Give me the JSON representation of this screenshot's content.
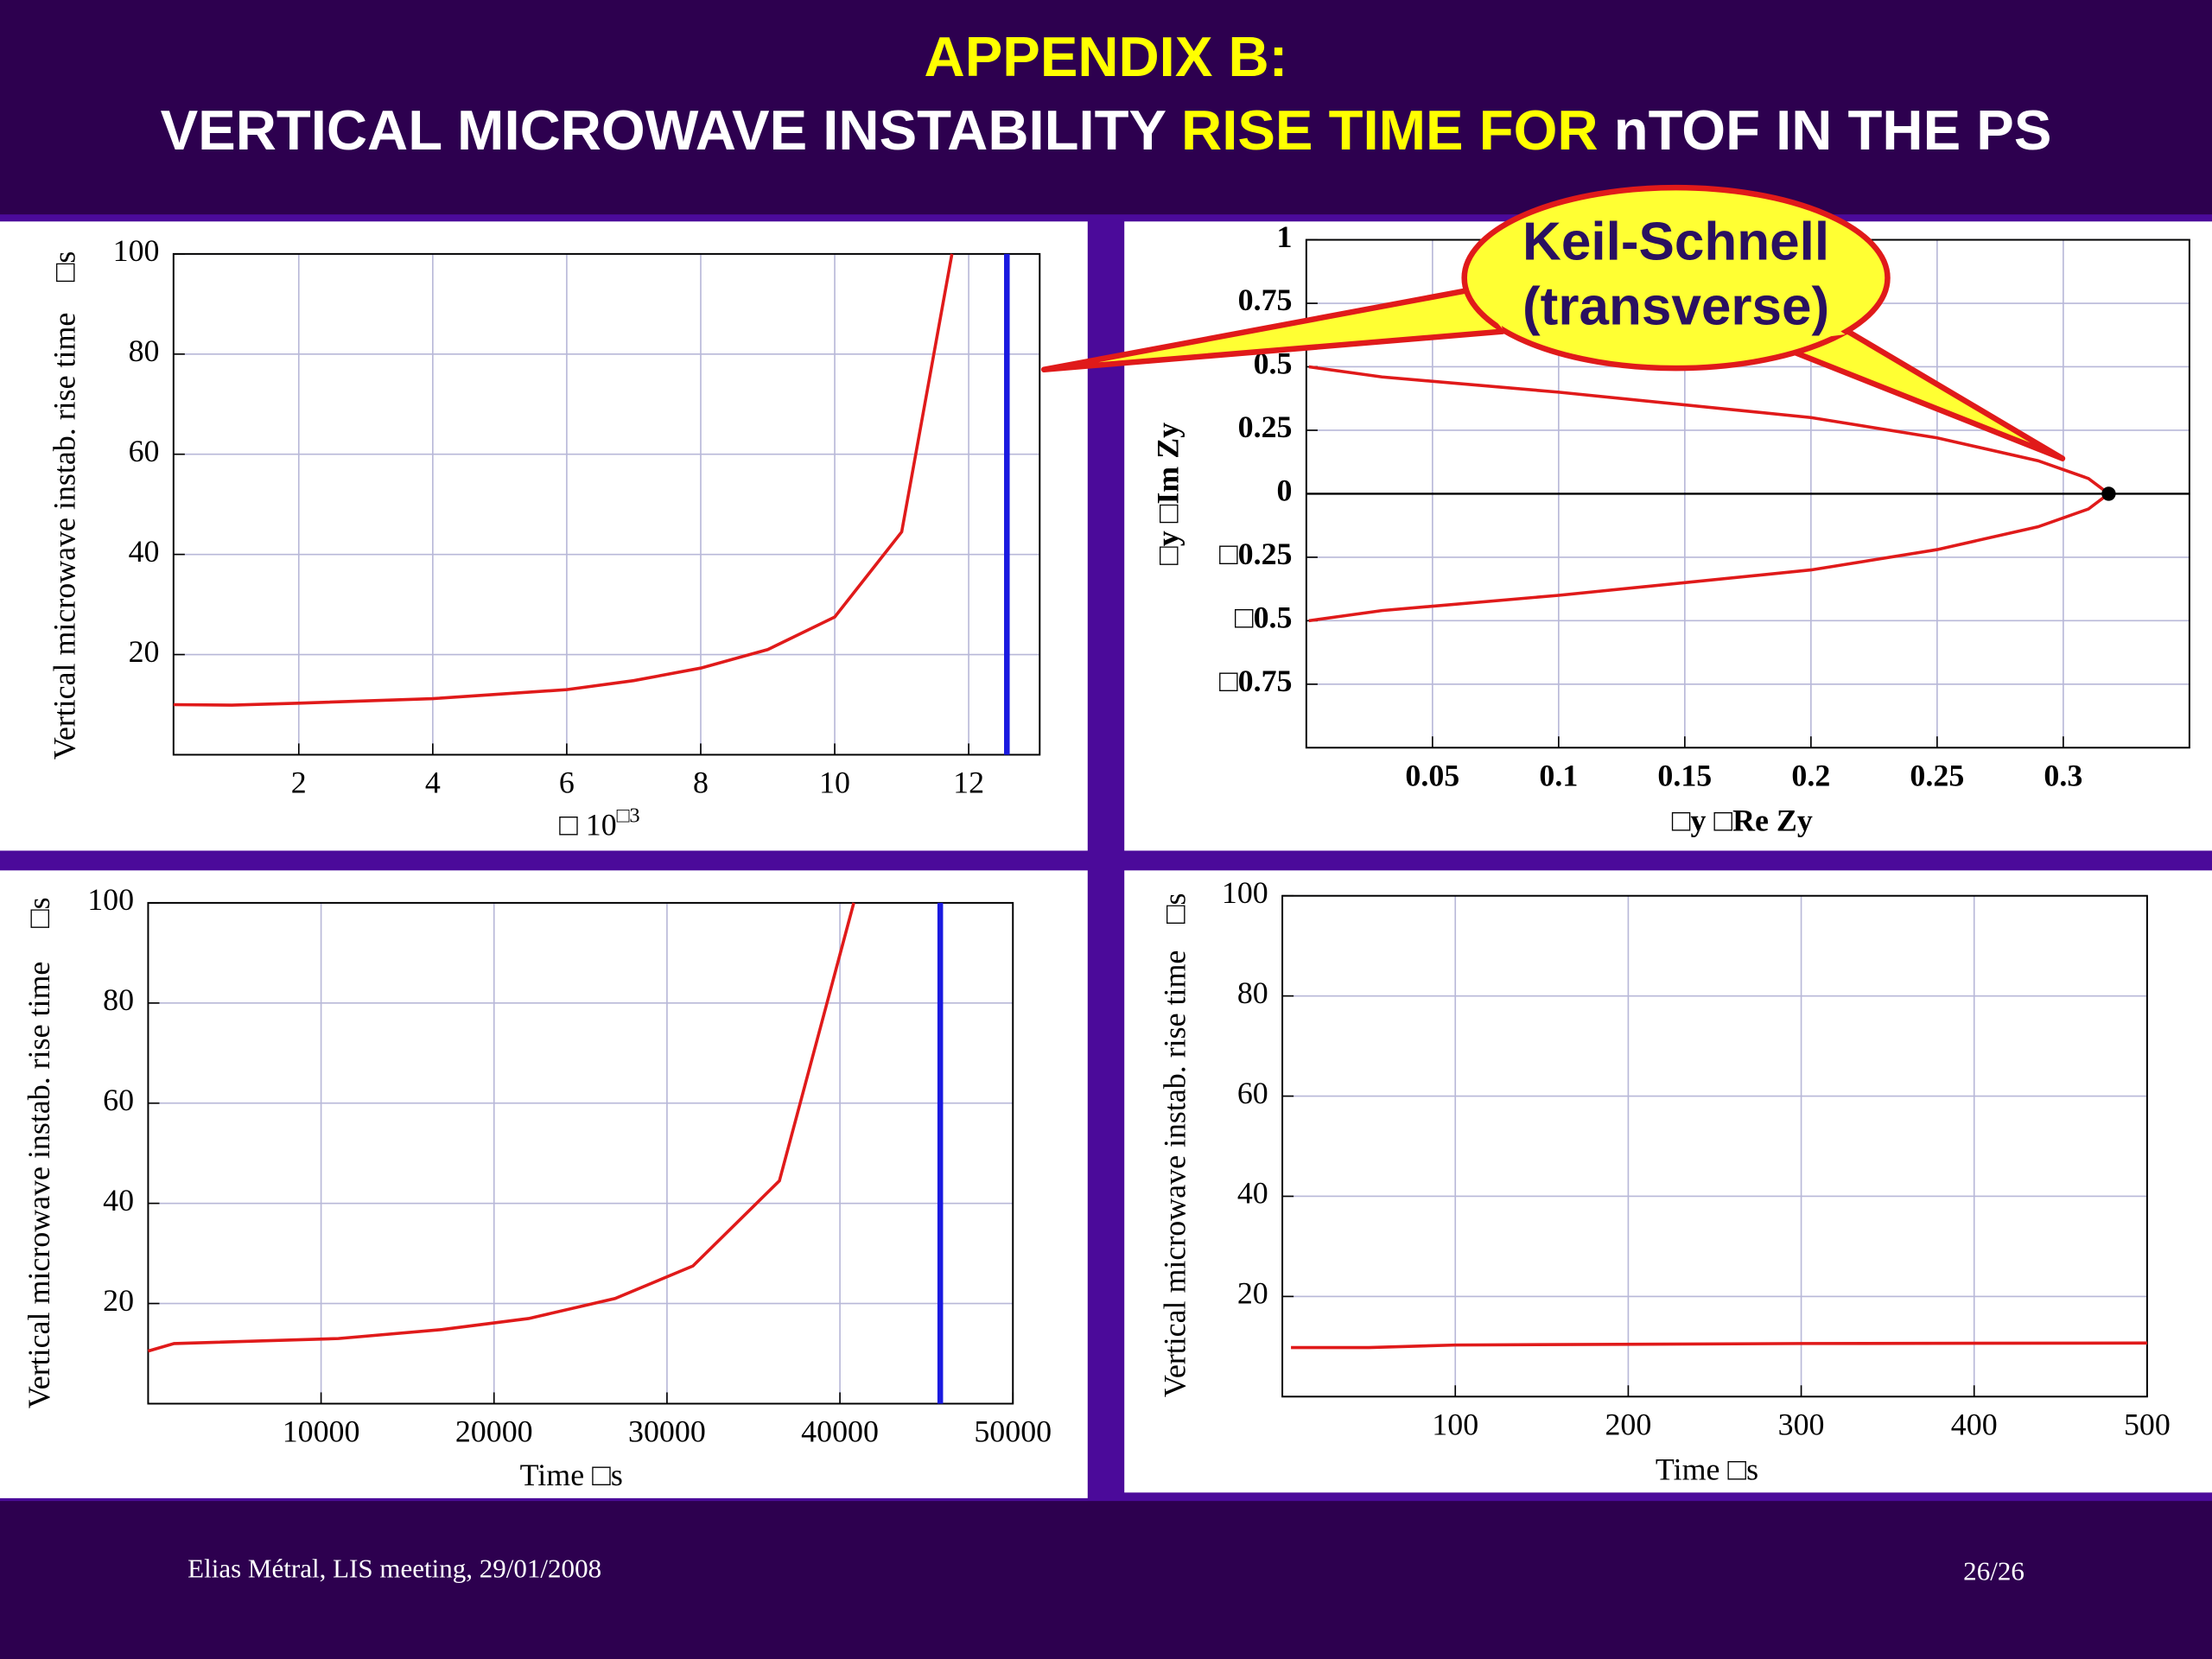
{
  "slide": {
    "title_line1": "APPENDIX B:",
    "title_line2_part1": "VERTICAL MICROWAVE INSTABILITY ",
    "title_line2_part2": "RISE TIME FOR",
    "title_line2_part3": " nTOF IN THE PS",
    "footer_left": "Elias Métral, LIS meeting, 29/01/2008",
    "footer_right": "26/26"
  },
  "chart_data": [
    {
      "type": "line",
      "y_label": "Vertical microwave instab. rise time",
      "y_unit": "□s",
      "x_label": "□  10",
      "x_label_sup": "□3",
      "x": [
        0.13,
        1,
        2,
        4,
        6,
        7,
        8,
        9,
        10,
        11,
        11.75
      ],
      "values": [
        10,
        9.9,
        10.3,
        11.2,
        13,
        14.8,
        17.3,
        21,
        27.5,
        44.5,
        100
      ],
      "color": "#e01a1a",
      "vline": {
        "value": 12.57,
        "color": "#1a1ae0"
      },
      "xlim": [
        0.13,
        13.06
      ],
      "xticks": [
        2,
        4,
        6,
        8,
        10,
        12
      ],
      "ylim": [
        0,
        100
      ],
      "yticks": [
        20,
        40,
        60,
        80,
        100
      ],
      "grid": true
    },
    {
      "type": "line",
      "y_label": "□y □Im  Zy",
      "x_label": "□y □Re  Zy",
      "annotations": [
        "Keil-Schnell",
        "(transverse)"
      ],
      "x": [
        0.001,
        0.03,
        0.1,
        0.2,
        0.25,
        0.29,
        0.31,
        0.318,
        0.31,
        0.29,
        0.25,
        0.2,
        0.1,
        0.03,
        0.001
      ],
      "values": [
        0.5,
        0.46,
        0.4,
        0.3,
        0.22,
        0.13,
        0.06,
        0,
        -0.06,
        -0.13,
        -0.22,
        -0.3,
        -0.4,
        -0.46,
        -0.5
      ],
      "color": "#e01a1a",
      "marker": {
        "x": 0.318,
        "y": 0,
        "color": "#000000"
      },
      "zero_line": true,
      "xlim": [
        0,
        0.35
      ],
      "xticks": [
        0.05,
        0.1,
        0.15,
        0.2,
        0.25,
        0.3
      ],
      "ylim": [
        -1,
        1
      ],
      "yticks": [
        1,
        0.75,
        0.5,
        0.25,
        0,
        {
          "value": -0.25,
          "label": "□0.25"
        },
        {
          "value": -0.5,
          "label": "□0.5"
        },
        {
          "value": -0.75,
          "label": "□0.75"
        }
      ],
      "grid": true
    },
    {
      "type": "line",
      "y_label": "Vertical microwave instab. rise time",
      "y_unit": "□s",
      "x_label": "Time    □s",
      "x": [
        0,
        1500,
        11000,
        17000,
        22000,
        27000,
        31500,
        36500,
        40800
      ],
      "values": [
        10.5,
        12,
        13,
        14.8,
        17,
        21,
        27.5,
        44.5,
        100
      ],
      "color": "#e01a1a",
      "vline": {
        "value": 45800,
        "color": "#1a1ae0"
      },
      "xlim": [
        0,
        50000
      ],
      "xticks": [
        10000,
        20000,
        30000,
        40000,
        50000
      ],
      "ylim": [
        0,
        100
      ],
      "yticks": [
        20,
        40,
        60,
        80,
        100
      ],
      "grid": true
    },
    {
      "type": "line",
      "y_label": "Vertical microwave instab. rise time",
      "y_unit": "□s",
      "x_label": "Time    □s",
      "x": [
        5,
        50,
        100,
        300,
        500
      ],
      "values": [
        9.8,
        9.8,
        10.3,
        10.6,
        10.7
      ],
      "color": "#e01a1a",
      "xlim": [
        0,
        500
      ],
      "xticks": [
        100,
        200,
        300,
        400,
        500
      ],
      "ylim": [
        0,
        100
      ],
      "yticks": [
        20,
        40,
        60,
        80,
        100
      ],
      "grid": true
    }
  ]
}
